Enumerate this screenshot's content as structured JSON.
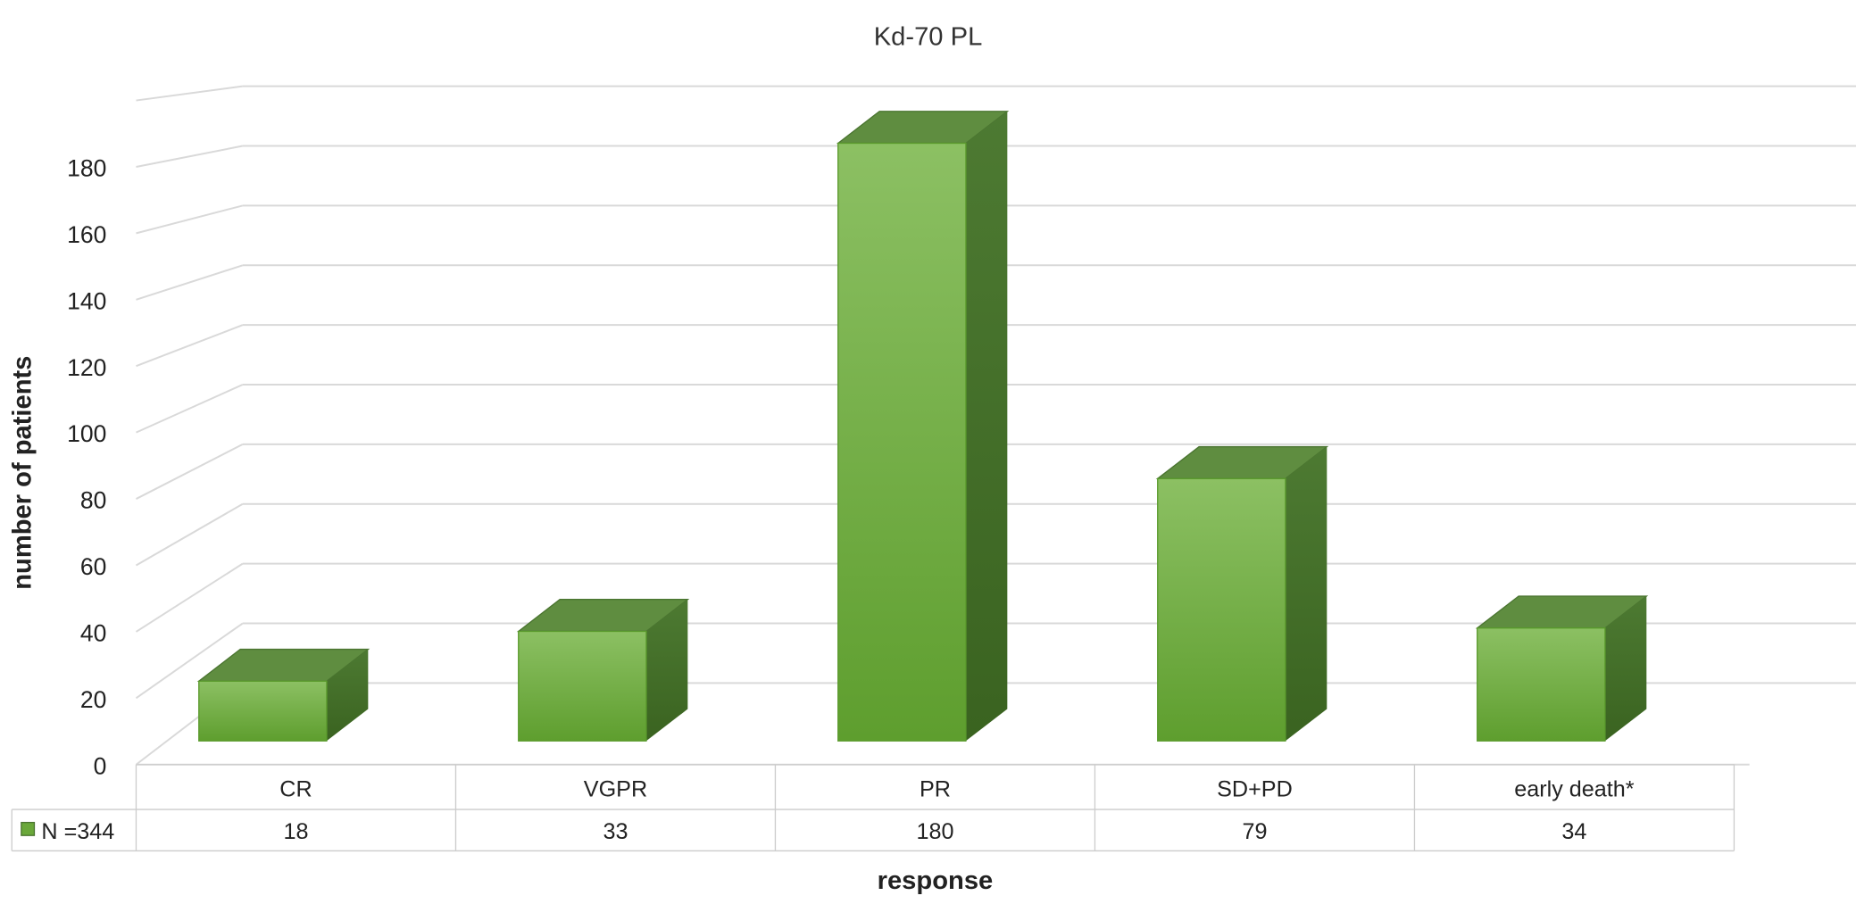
{
  "chart_data": {
    "type": "bar",
    "style": "3d-column",
    "title": "Kd-70 PL",
    "xlabel": "response",
    "ylabel": "number of patients",
    "ylim": [
      0,
      200
    ],
    "yticks": [
      0,
      20,
      40,
      60,
      80,
      100,
      120,
      140,
      160,
      180
    ],
    "grid": true,
    "categories": [
      "CR",
      "VGPR",
      "PR",
      "SD+PD",
      "early death*"
    ],
    "series": [
      {
        "name": "N =344",
        "values": [
          18,
          33,
          180,
          79,
          34
        ],
        "color": "#6aa83a"
      }
    ],
    "legend": "data-table-left",
    "data_table": true
  }
}
